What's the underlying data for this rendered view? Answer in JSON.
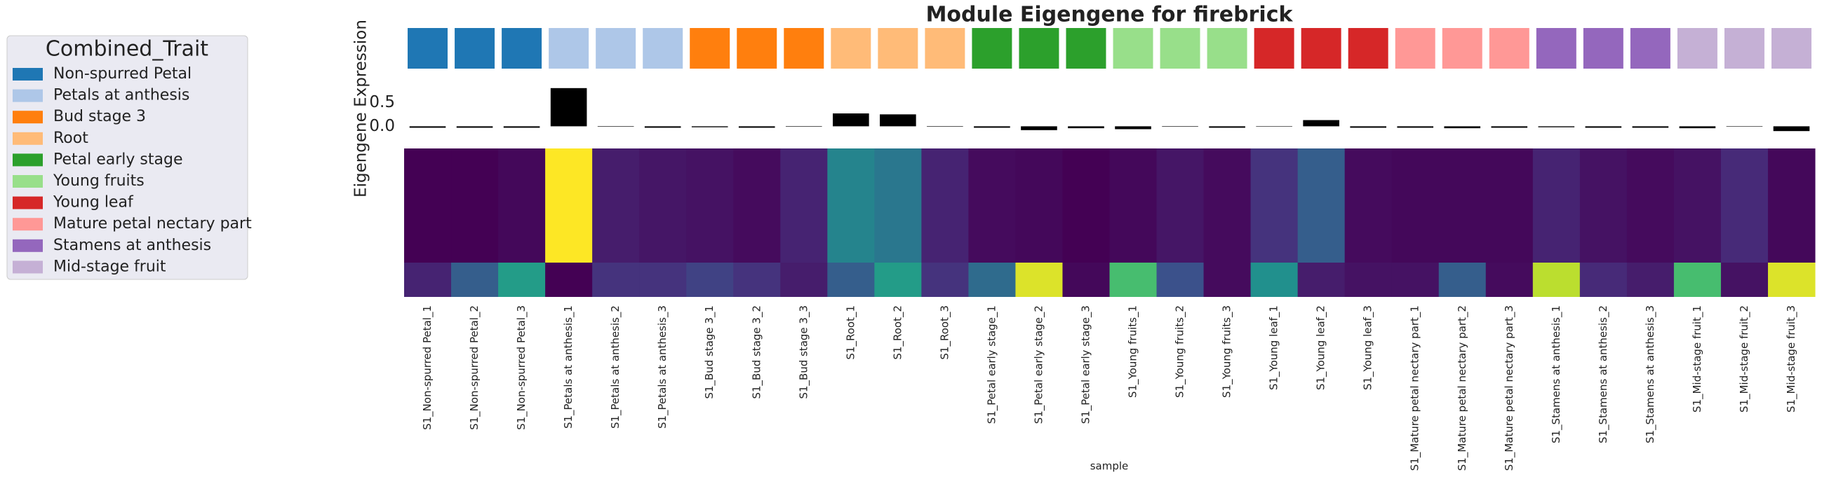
{
  "chart_data": {
    "type": "heatmap",
    "title": "Module Eigengene for firebrick",
    "x_label": "sample",
    "y_label": "Eigengene Expression",
    "legend": {
      "title": "Combined_Trait",
      "position": "left",
      "entries": [
        {
          "name": "Non-spurred Petal",
          "color": "#1f77b4"
        },
        {
          "name": "Petals at anthesis",
          "color": "#aec7e8"
        },
        {
          "name": "Bud stage 3",
          "color": "#ff7f0e"
        },
        {
          "name": "Root",
          "color": "#ffbb78"
        },
        {
          "name": "Petal early stage",
          "color": "#2ca02c"
        },
        {
          "name": "Young fruits",
          "color": "#98df8a"
        },
        {
          "name": "Young leaf",
          "color": "#d62728"
        },
        {
          "name": "Mature petal nectary part",
          "color": "#ff9896"
        },
        {
          "name": "Stamens at anthesis",
          "color": "#9467bd"
        },
        {
          "name": "Mid-stage fruit",
          "color": "#c5b0d5"
        }
      ]
    },
    "categories": [
      "S1_Non-spurred Petal_1",
      "S1_Non-spurred Petal_2",
      "S1_Non-spurred Petal_3",
      "S1_Petals at anthesis_1",
      "S1_Petals at anthesis_2",
      "S1_Petals at anthesis_3",
      "S1_Bud stage 3_1",
      "S1_Bud stage 3_2",
      "S1_Bud stage 3_3",
      "S1_Root_1",
      "S1_Root_2",
      "S1_Root_3",
      "S1_Petal early stage_1",
      "S1_Petal early stage_2",
      "S1_Petal early stage_3",
      "S1_Young fruits_1",
      "S1_Young fruits_2",
      "S1_Young fruits_3",
      "S1_Young leaf_1",
      "S1_Young leaf_2",
      "S1_Young leaf_3",
      "S1_Mature petal nectary part_1",
      "S1_Mature petal nectary part_2",
      "S1_Mature petal nectary part_3",
      "S1_Stamens at anthesis_1",
      "S1_Stamens at anthesis_2",
      "S1_Stamens at anthesis_3",
      "S1_Mid-stage fruit_1",
      "S1_Mid-stage fruit_2",
      "S1_Mid-stage fruit_3"
    ],
    "trait_index": [
      0,
      0,
      0,
      1,
      1,
      1,
      2,
      2,
      2,
      3,
      3,
      3,
      4,
      4,
      4,
      5,
      5,
      5,
      6,
      6,
      6,
      7,
      7,
      7,
      8,
      8,
      8,
      9,
      9,
      9
    ],
    "eigengene": {
      "color": "#000000",
      "ylim": [
        -0.2,
        0.9
      ],
      "yticks": [
        {
          "value": 0,
          "label": "0.0"
        },
        0.5
      ],
      "values": [
        -0.03,
        -0.03,
        -0.03,
        0.8,
        -0.01,
        -0.03,
        -0.02,
        -0.03,
        -0.01,
        0.27,
        0.25,
        -0.01,
        -0.03,
        -0.08,
        -0.04,
        -0.06,
        -0.01,
        -0.03,
        0,
        0.13,
        -0.03,
        -0.03,
        -0.04,
        -0.03,
        -0.02,
        -0.03,
        -0.03,
        -0.04,
        0,
        -0.1
      ]
    },
    "heatmap": {
      "colormap": "viridis",
      "vlim": [
        0,
        1
      ],
      "values": [
        [
          0.0,
          0.0,
          0.02,
          1.0,
          0.08,
          0.06,
          0.05,
          0.03,
          0.1,
          0.45,
          0.4,
          0.1,
          0.03,
          0.02,
          0.0,
          0.02,
          0.06,
          0.03,
          0.15,
          0.3,
          0.03,
          0.02,
          0.02,
          0.02,
          0.1,
          0.05,
          0.03,
          0.05,
          0.12,
          0.02
        ],
        [
          0.1,
          0.3,
          0.55,
          0.0,
          0.15,
          0.15,
          0.2,
          0.15,
          0.08,
          0.3,
          0.55,
          0.15,
          0.35,
          0.95,
          0.02,
          0.7,
          0.25,
          0.03,
          0.5,
          0.08,
          0.05,
          0.05,
          0.3,
          0.03,
          0.9,
          0.12,
          0.08,
          0.7,
          0.05,
          0.95
        ]
      ]
    }
  }
}
